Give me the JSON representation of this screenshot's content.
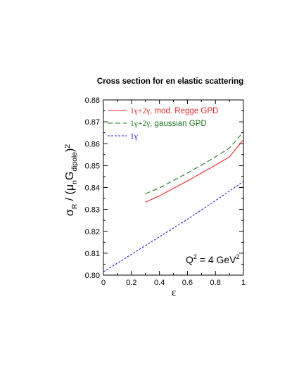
{
  "chart_data": {
    "type": "line",
    "title": "Cross section for en elastic scattering",
    "xlabel": "ε",
    "ylabel": {
      "parts": [
        {
          "text": "σ",
          "shift": 0,
          "size": 1.0
        },
        {
          "text": "R",
          "shift": 1,
          "size": 0.65
        },
        {
          "text": " / (μ",
          "shift": 0,
          "size": 1.0
        },
        {
          "text": "n",
          "shift": 1,
          "size": 0.65
        },
        {
          "text": "G",
          "shift": 0,
          "size": 1.0
        },
        {
          "text": "dipole",
          "shift": 1,
          "size": 0.65
        },
        {
          "text": ")",
          "shift": 0,
          "size": 1.0
        },
        {
          "text": "2",
          "shift": -1,
          "size": 0.65
        }
      ]
    },
    "xlim": [
      0,
      1
    ],
    "ylim": [
      0.8,
      0.88
    ],
    "x_ticks": [
      "0",
      "0.2",
      "0.4",
      "0.6",
      "0.8",
      "1"
    ],
    "x_tick_values": [
      0,
      0.2,
      0.4,
      0.6,
      0.8,
      1.0
    ],
    "y_ticks": [
      "0.80",
      "0.81",
      "0.82",
      "0.83",
      "0.84",
      "0.85",
      "0.86",
      "0.87",
      "0.88"
    ],
    "y_tick_values": [
      0.8,
      0.81,
      0.82,
      0.83,
      0.84,
      0.85,
      0.86,
      0.87,
      0.88
    ],
    "legend_position": "top-left",
    "annotation": {
      "parts": [
        {
          "text": "Q",
          "sup": false
        },
        {
          "text": "2",
          "sup": true
        },
        {
          "text": " = 4 GeV",
          "sup": false
        },
        {
          "text": "2",
          "sup": true
        }
      ]
    },
    "series": [
      {
        "name": "1γ+2γ, mod. Regge GPD",
        "name_parts": [
          {
            "text": "1γ+2γ",
            "serif": true
          },
          {
            "text": ", mod. Regge GPD",
            "serif": false
          }
        ],
        "color": "#e8262b",
        "style": "solid",
        "x": [
          0.3,
          0.4,
          0.5,
          0.6,
          0.7,
          0.8,
          0.9,
          1.0
        ],
        "y": [
          0.8333,
          0.8362,
          0.8396,
          0.843,
          0.8466,
          0.8502,
          0.854,
          0.8618
        ]
      },
      {
        "name": "1γ+2γ, gaussian GPD",
        "name_parts": [
          {
            "text": "1γ+2γ",
            "serif": true
          },
          {
            "text": ", gaussian GPD",
            "serif": false
          }
        ],
        "color": "#1f7a1f",
        "style": "dashed",
        "x": [
          0.3,
          0.4,
          0.5,
          0.6,
          0.7,
          0.8,
          0.9,
          1.0
        ],
        "y": [
          0.8372,
          0.8398,
          0.8432,
          0.8466,
          0.8502,
          0.854,
          0.858,
          0.8655
        ]
      },
      {
        "name": "1γ",
        "name_parts": [
          {
            "text": "1γ",
            "serif": true
          }
        ],
        "color": "#2222cc",
        "style": "dotted",
        "x": [
          0.0,
          0.2,
          0.4,
          0.6,
          0.8,
          1.0
        ],
        "y": [
          0.8015,
          0.8095,
          0.8175,
          0.8255,
          0.834,
          0.8428
        ]
      }
    ]
  }
}
